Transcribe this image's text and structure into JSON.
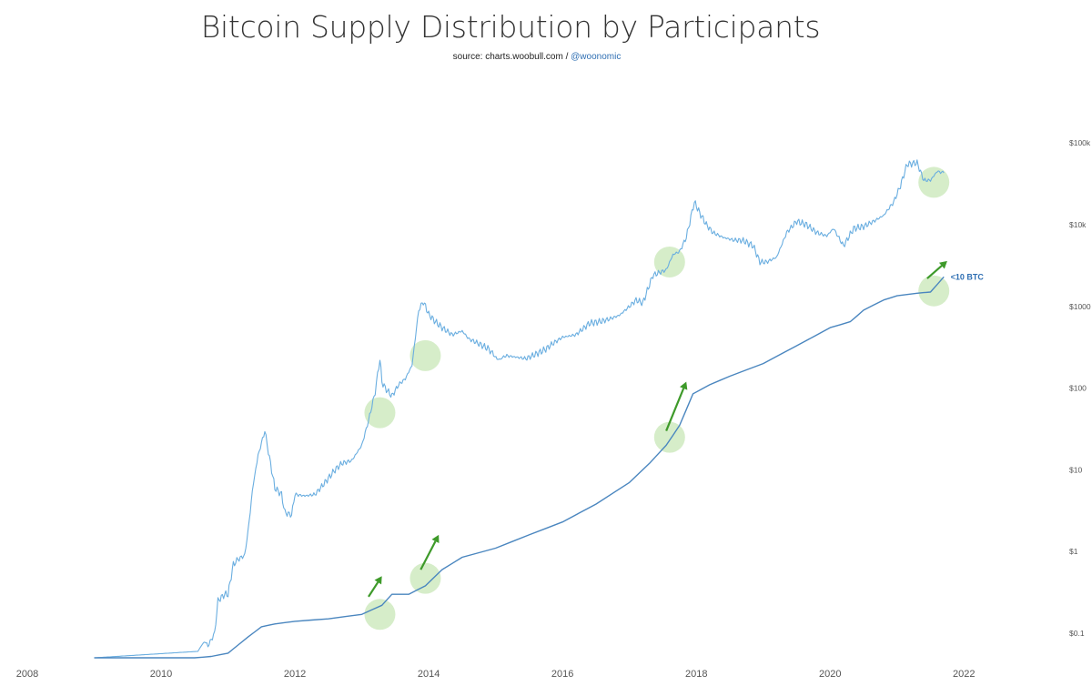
{
  "header": {
    "title": "Bitcoin Supply Distribution by Participants",
    "source_prefix": "source: charts.woobull.com / ",
    "source_handle": "@woonomic"
  },
  "chart_data": {
    "type": "line",
    "title": "Bitcoin Supply Distribution by Participants",
    "subtitle": "source: charts.woobull.com / @woonomic",
    "x_ticks": [
      "2008",
      "2010",
      "2012",
      "2014",
      "2016",
      "2018",
      "2020",
      "2022"
    ],
    "x_range": [
      2008,
      2022.2
    ],
    "y_scale": "log",
    "y_ticks": [
      "$0.1",
      "$1",
      "$10",
      "$100",
      "$1000",
      "$10k",
      "$100k"
    ],
    "y_tick_values": [
      0.1,
      1,
      10,
      100,
      1000,
      10000,
      100000
    ],
    "y_range": [
      0.05,
      200000
    ],
    "series": [
      {
        "color": "#6aaee0",
        "x": [
          2009.0,
          2010.55,
          2010.6,
          2010.65,
          2010.7,
          2010.8,
          2010.85,
          2010.95,
          2011.0,
          2011.08,
          2011.15,
          2011.25,
          2011.3,
          2011.38,
          2011.45,
          2011.55,
          2011.62,
          2011.7,
          2011.8,
          2011.85,
          2011.95,
          2012.0,
          2012.15,
          2012.3,
          2012.45,
          2012.6,
          2012.7,
          2012.85,
          2013.0,
          2013.1,
          2013.2,
          2013.27,
          2013.3,
          2013.35,
          2013.45,
          2013.55,
          2013.65,
          2013.75,
          2013.85,
          2013.92,
          2014.0,
          2014.1,
          2014.2,
          2014.35,
          2014.5,
          2014.6,
          2014.75,
          2014.9,
          2015.04,
          2015.15,
          2015.3,
          2015.45,
          2015.6,
          2015.75,
          2015.85,
          2016.0,
          2016.2,
          2016.4,
          2016.55,
          2016.7,
          2016.85,
          2017.0,
          2017.1,
          2017.2,
          2017.35,
          2017.45,
          2017.55,
          2017.65,
          2017.75,
          2017.85,
          2017.97,
          2018.05,
          2018.15,
          2018.25,
          2018.4,
          2018.55,
          2018.7,
          2018.85,
          2018.95,
          2019.05,
          2019.2,
          2019.35,
          2019.5,
          2019.65,
          2019.8,
          2019.95,
          2020.05,
          2020.2,
          2020.35,
          2020.5,
          2020.65,
          2020.8,
          2020.95,
          2021.05,
          2021.15,
          2021.3,
          2021.4,
          2021.5,
          2021.6,
          2021.7
        ],
        "values": [
          0.05,
          0.06,
          0.07,
          0.08,
          0.07,
          0.1,
          0.25,
          0.3,
          0.3,
          0.7,
          0.8,
          0.9,
          1.8,
          7,
          15,
          30,
          14,
          6,
          5,
          3,
          2.8,
          5,
          4.8,
          5,
          7,
          10,
          12,
          13,
          20,
          40,
          90,
          230,
          120,
          100,
          80,
          110,
          130,
          190,
          900,
          1150,
          800,
          650,
          550,
          450,
          500,
          400,
          350,
          300,
          220,
          250,
          240,
          230,
          260,
          300,
          350,
          420,
          450,
          620,
          650,
          700,
          780,
          1000,
          1200,
          1100,
          2400,
          2600,
          2800,
          4300,
          4700,
          7000,
          19000,
          14000,
          10000,
          8000,
          7000,
          6500,
          6400,
          5500,
          3500,
          3500,
          4000,
          8000,
          11000,
          10000,
          8000,
          7300,
          9000,
          5500,
          9000,
          9500,
          11000,
          13000,
          19000,
          30000,
          55000,
          57000,
          35000,
          35000,
          45000,
          43000
        ]
      },
      {
        "name": "<10 BTC",
        "color": "#4a86bf",
        "x": [
          2009.0,
          2010.5,
          2010.75,
          2011.0,
          2011.3,
          2011.5,
          2011.7,
          2012.0,
          2012.5,
          2013.0,
          2013.3,
          2013.45,
          2013.7,
          2013.95,
          2014.2,
          2014.5,
          2015.0,
          2015.5,
          2016.0,
          2016.5,
          2017.0,
          2017.3,
          2017.55,
          2017.75,
          2017.95,
          2018.2,
          2018.5,
          2019.0,
          2019.5,
          2020.0,
          2020.3,
          2020.5,
          2020.8,
          2021.0,
          2021.3,
          2021.5,
          2021.7
        ],
        "values": [
          0.05,
          0.05,
          0.052,
          0.057,
          0.09,
          0.12,
          0.13,
          0.14,
          0.15,
          0.17,
          0.22,
          0.3,
          0.3,
          0.38,
          0.6,
          0.85,
          1.1,
          1.6,
          2.3,
          3.8,
          7,
          12,
          20,
          35,
          85,
          110,
          140,
          200,
          330,
          550,
          650,
          900,
          1200,
          1350,
          1450,
          1500,
          2300
        ]
      }
    ],
    "highlights": [
      {
        "x": 2013.27,
        "y": 0.17
      },
      {
        "x": 2013.27,
        "y": 50
      },
      {
        "x": 2013.95,
        "y": 0.47
      },
      {
        "x": 2013.95,
        "y": 250
      },
      {
        "x": 2017.6,
        "y": 25
      },
      {
        "x": 2017.6,
        "y": 3500
      },
      {
        "x": 2021.55,
        "y": 1550
      },
      {
        "x": 2021.55,
        "y": 33000
      }
    ],
    "arrows": [
      {
        "x1": 2013.1,
        "y1": 0.28,
        "x2": 2013.3,
        "y2": 0.5
      },
      {
        "x1": 2013.88,
        "y1": 0.6,
        "x2": 2014.15,
        "y2": 1.6
      },
      {
        "x1": 2017.55,
        "y1": 30,
        "x2": 2017.85,
        "y2": 120
      },
      {
        "x1": 2021.45,
        "y1": 2200,
        "x2": 2021.75,
        "y2": 3600
      }
    ],
    "annotations": [
      "<10 BTC"
    ],
    "highlight_color": "#cce8bc",
    "arrow_color": "#3e9a2a",
    "grid": false
  }
}
